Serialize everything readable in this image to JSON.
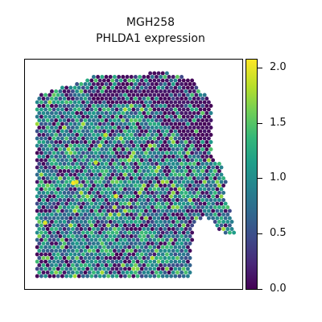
{
  "chart_data": {
    "type": "scatter",
    "title": "MGH258",
    "subtitle": "PHLDA1 expression",
    "xlabel": "",
    "ylabel": "",
    "colormap": "viridis",
    "color_range": [
      0.0,
      2.0
    ],
    "colorbar_ticks": [
      "0.0",
      "0.5",
      "1.0",
      "1.5",
      "2.0"
    ],
    "colorbar_tick_values": [
      0.0,
      0.5,
      1.0,
      1.5,
      2.0
    ],
    "grid": false,
    "legend": "colorbar right",
    "hotspots": [
      {
        "x": 4.6,
        "y": 10.8,
        "value": 2.0
      },
      {
        "x": 5.0,
        "y": 10.9,
        "value": 1.9
      },
      {
        "x": 1.1,
        "y": 6.3,
        "value": 1.9
      },
      {
        "x": 9.9,
        "y": 9.3,
        "value": 1.9
      },
      {
        "x": 7.4,
        "y": 13.1,
        "value": 1.8
      },
      {
        "x": 8.6,
        "y": 16.2,
        "value": 1.8
      }
    ]
  }
}
